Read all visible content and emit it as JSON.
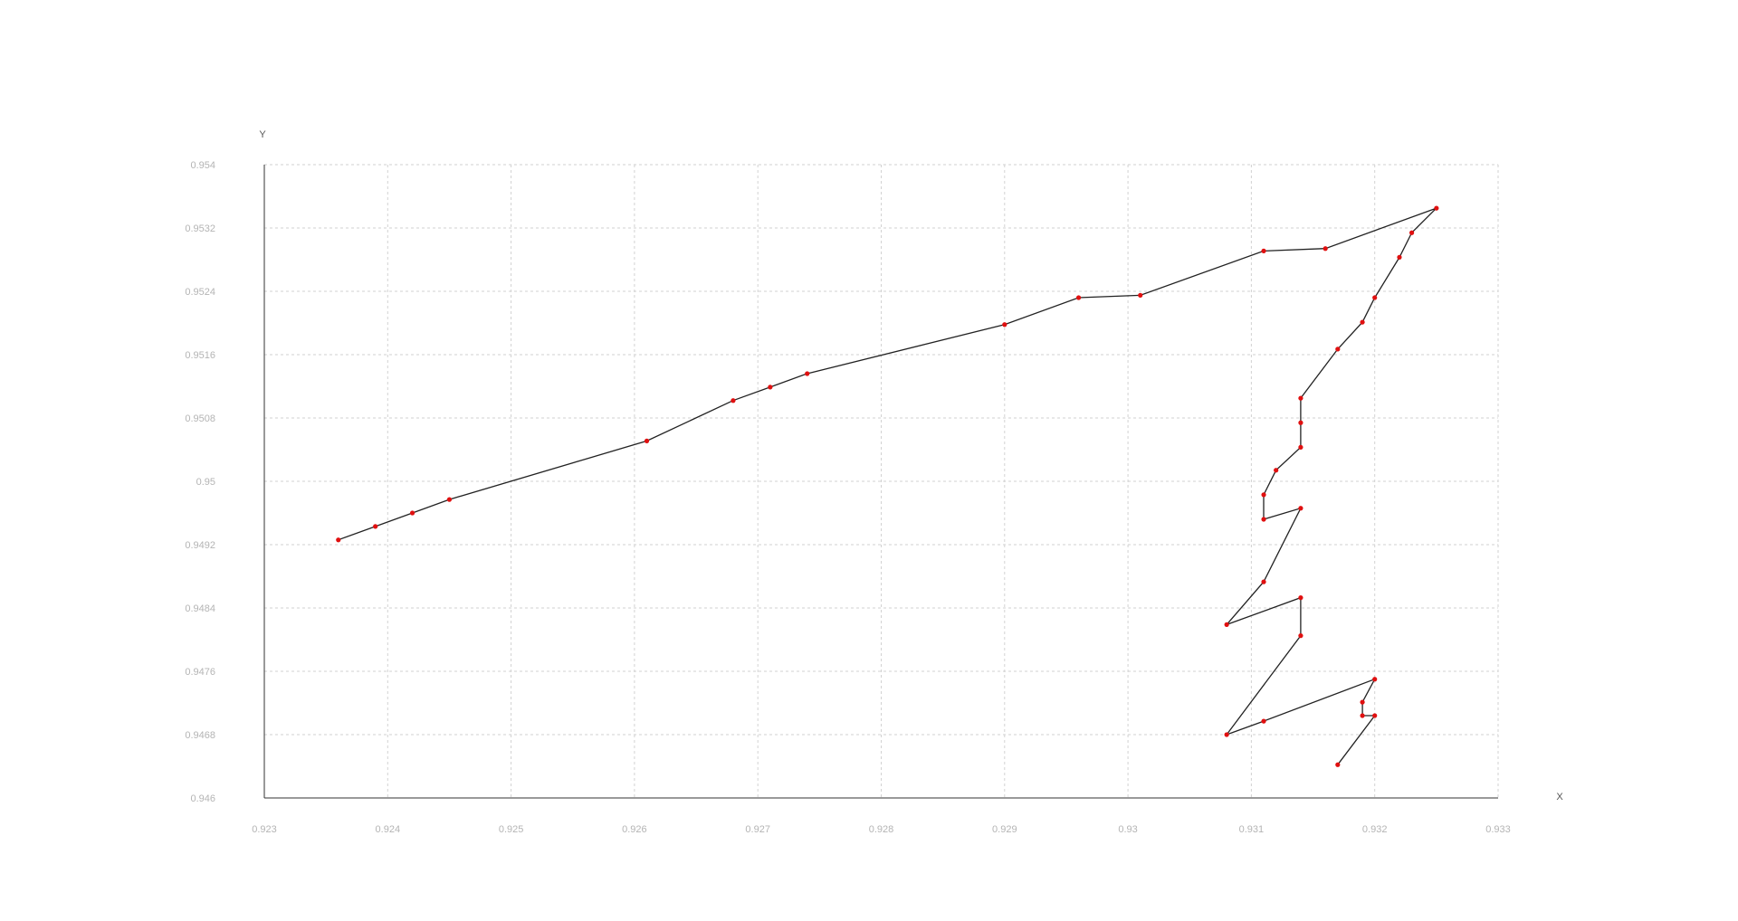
{
  "chart_data": {
    "type": "line",
    "title": "",
    "xlabel": "X",
    "ylabel": "Y",
    "xlim": [
      0.923,
      0.933
    ],
    "ylim": [
      0.946,
      0.954
    ],
    "xticks": [
      "0.923",
      "0.924",
      "0.925",
      "0.926",
      "0.927",
      "0.928",
      "0.929",
      "0.93",
      "0.931",
      "0.932",
      "0.933"
    ],
    "yticks": [
      "0.946",
      "0.9468",
      "0.9476",
      "0.9484",
      "0.9492",
      "0.95",
      "0.9508",
      "0.9516",
      "0.9524",
      "0.9532",
      "0.954"
    ],
    "grid": true,
    "legend": "none",
    "colors": {
      "line": "#222222",
      "points": "#e01010"
    },
    "series": [
      {
        "x": [
          0.9236,
          0.9239,
          0.9242,
          0.9245,
          0.9261,
          0.9268,
          0.9271,
          0.9274,
          0.929,
          0.9296,
          0.9301,
          0.9311,
          0.9316,
          0.9325,
          0.9323,
          0.9322,
          0.932,
          0.9319,
          0.9317,
          0.9314,
          0.9314,
          0.9314,
          0.9312,
          0.9311,
          0.9311,
          0.9314,
          0.9311,
          0.9308,
          0.9314,
          0.9314,
          0.9308,
          0.9311,
          0.932,
          0.9319,
          0.9319,
          0.932,
          0.9317
        ],
        "y": [
          0.94926,
          0.94943,
          0.9496,
          0.94977,
          0.95051,
          0.95102,
          0.95119,
          0.95136,
          0.95198,
          0.95232,
          0.95235,
          0.95291,
          0.95294,
          0.95345,
          0.95314,
          0.95283,
          0.95232,
          0.95201,
          0.95167,
          0.95105,
          0.95074,
          0.95043,
          0.95014,
          0.94983,
          0.94952,
          0.94966,
          0.94873,
          0.94819,
          0.94853,
          0.94805,
          0.9468,
          0.94697,
          0.9475,
          0.94721,
          0.94704,
          0.94704,
          0.94642
        ]
      }
    ]
  }
}
